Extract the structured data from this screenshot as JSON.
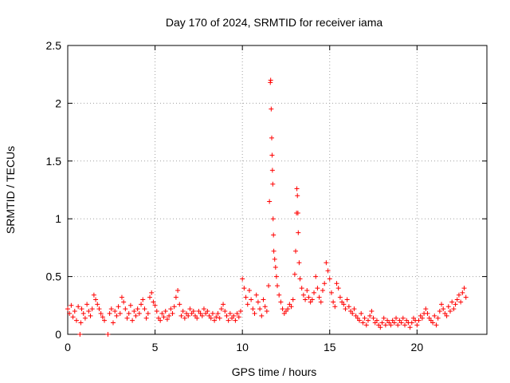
{
  "chart_data": {
    "type": "scatter",
    "title": "Day 170 of 2024, SRMTID for receiver iama",
    "xlabel": "GPS time / hours",
    "ylabel": "SRMTID / TECUs",
    "xlim": [
      0,
      24
    ],
    "ylim": [
      0,
      2.5
    ],
    "grid": true,
    "marker": "+",
    "marker_color": "#ff0000",
    "xticks": [
      0,
      5,
      10,
      15,
      20
    ],
    "xtick_labels": [
      "0",
      "5",
      "10",
      "15",
      "20"
    ],
    "yticks": [
      0,
      0.5,
      1,
      1.5,
      2,
      2.5
    ],
    "ytick_labels": [
      "0",
      "0.5",
      "1",
      "1.5",
      "2",
      "2.5"
    ],
    "series": [
      {
        "name": "SRMTID",
        "points": [
          [
            0.0,
            0.22
          ],
          [
            0.1,
            0.18
          ],
          [
            0.2,
            0.25
          ],
          [
            0.3,
            0.15
          ],
          [
            0.4,
            0.2
          ],
          [
            0.5,
            0.12
          ],
          [
            0.6,
            0.24
          ],
          [
            0.7,
            0.0
          ],
          [
            0.75,
            0.1
          ],
          [
            0.8,
            0.22
          ],
          [
            0.9,
            0.18
          ],
          [
            1.0,
            0.14
          ],
          [
            1.1,
            0.26
          ],
          [
            1.2,
            0.2
          ],
          [
            1.3,
            0.16
          ],
          [
            1.4,
            0.22
          ],
          [
            1.5,
            0.34
          ],
          [
            1.6,
            0.3
          ],
          [
            1.7,
            0.26
          ],
          [
            1.8,
            0.22
          ],
          [
            1.9,
            0.18
          ],
          [
            2.0,
            0.15
          ],
          [
            2.1,
            0.12
          ],
          [
            2.3,
            0.0
          ],
          [
            2.4,
            0.18
          ],
          [
            2.5,
            0.22
          ],
          [
            2.6,
            0.1
          ],
          [
            2.7,
            0.2
          ],
          [
            2.8,
            0.16
          ],
          [
            2.9,
            0.24
          ],
          [
            3.0,
            0.18
          ],
          [
            3.1,
            0.32
          ],
          [
            3.2,
            0.28
          ],
          [
            3.3,
            0.22
          ],
          [
            3.4,
            0.14
          ],
          [
            3.5,
            0.18
          ],
          [
            3.6,
            0.25
          ],
          [
            3.7,
            0.12
          ],
          [
            3.8,
            0.2
          ],
          [
            3.9,
            0.16
          ],
          [
            4.0,
            0.22
          ],
          [
            4.1,
            0.18
          ],
          [
            4.2,
            0.26
          ],
          [
            4.3,
            0.3
          ],
          [
            4.4,
            0.22
          ],
          [
            4.5,
            0.14
          ],
          [
            4.6,
            0.18
          ],
          [
            4.7,
            0.32
          ],
          [
            4.8,
            0.36
          ],
          [
            4.9,
            0.28
          ],
          [
            5.0,
            0.25
          ],
          [
            5.1,
            0.2
          ],
          [
            5.2,
            0.14
          ],
          [
            5.3,
            0.12
          ],
          [
            5.4,
            0.18
          ],
          [
            5.5,
            0.15
          ],
          [
            5.6,
            0.2
          ],
          [
            5.7,
            0.13
          ],
          [
            5.8,
            0.16
          ],
          [
            5.9,
            0.22
          ],
          [
            6.0,
            0.18
          ],
          [
            6.1,
            0.24
          ],
          [
            6.2,
            0.32
          ],
          [
            6.3,
            0.38
          ],
          [
            6.4,
            0.26
          ],
          [
            6.5,
            0.16
          ],
          [
            6.6,
            0.2
          ],
          [
            6.7,
            0.14
          ],
          [
            6.8,
            0.18
          ],
          [
            6.9,
            0.16
          ],
          [
            7.0,
            0.22
          ],
          [
            7.1,
            0.18
          ],
          [
            7.2,
            0.2
          ],
          [
            7.3,
            0.16
          ],
          [
            7.4,
            0.14
          ],
          [
            7.5,
            0.2
          ],
          [
            7.6,
            0.18
          ],
          [
            7.7,
            0.16
          ],
          [
            7.8,
            0.22
          ],
          [
            7.9,
            0.18
          ],
          [
            8.0,
            0.2
          ],
          [
            8.1,
            0.16
          ],
          [
            8.2,
            0.14
          ],
          [
            8.3,
            0.18
          ],
          [
            8.4,
            0.12
          ],
          [
            8.5,
            0.15
          ],
          [
            8.6,
            0.18
          ],
          [
            8.7,
            0.14
          ],
          [
            8.8,
            0.22
          ],
          [
            8.9,
            0.26
          ],
          [
            9.0,
            0.2
          ],
          [
            9.1,
            0.16
          ],
          [
            9.2,
            0.12
          ],
          [
            9.3,
            0.18
          ],
          [
            9.4,
            0.14
          ],
          [
            9.5,
            0.16
          ],
          [
            9.6,
            0.12
          ],
          [
            9.7,
            0.18
          ],
          [
            9.8,
            0.15
          ],
          [
            9.9,
            0.2
          ],
          [
            10.0,
            0.48
          ],
          [
            10.1,
            0.4
          ],
          [
            10.2,
            0.32
          ],
          [
            10.3,
            0.26
          ],
          [
            10.4,
            0.38
          ],
          [
            10.5,
            0.3
          ],
          [
            10.6,
            0.22
          ],
          [
            10.7,
            0.18
          ],
          [
            10.8,
            0.34
          ],
          [
            10.9,
            0.28
          ],
          [
            11.0,
            0.22
          ],
          [
            11.1,
            0.16
          ],
          [
            11.2,
            0.3
          ],
          [
            11.3,
            0.24
          ],
          [
            11.4,
            0.2
          ],
          [
            11.5,
            0.42
          ],
          [
            11.55,
            1.15
          ],
          [
            11.6,
            2.18
          ],
          [
            11.62,
            2.2
          ],
          [
            11.65,
            1.95
          ],
          [
            11.68,
            1.7
          ],
          [
            11.7,
            1.55
          ],
          [
            11.72,
            1.42
          ],
          [
            11.74,
            1.3
          ],
          [
            11.76,
            1.0
          ],
          [
            11.78,
            0.86
          ],
          [
            11.8,
            0.72
          ],
          [
            11.85,
            0.65
          ],
          [
            11.9,
            0.58
          ],
          [
            11.95,
            0.5
          ],
          [
            12.0,
            0.42
          ],
          [
            12.1,
            0.34
          ],
          [
            12.2,
            0.28
          ],
          [
            12.3,
            0.22
          ],
          [
            12.4,
            0.18
          ],
          [
            12.5,
            0.2
          ],
          [
            12.6,
            0.22
          ],
          [
            12.7,
            0.26
          ],
          [
            12.8,
            0.24
          ],
          [
            12.9,
            0.3
          ],
          [
            13.0,
            0.52
          ],
          [
            13.05,
            0.72
          ],
          [
            13.1,
            1.05
          ],
          [
            13.12,
            1.26
          ],
          [
            13.15,
            1.2
          ],
          [
            13.18,
            1.05
          ],
          [
            13.2,
            0.88
          ],
          [
            13.25,
            0.62
          ],
          [
            13.3,
            0.48
          ],
          [
            13.4,
            0.4
          ],
          [
            13.5,
            0.34
          ],
          [
            13.6,
            0.3
          ],
          [
            13.7,
            0.38
          ],
          [
            13.8,
            0.32
          ],
          [
            13.9,
            0.28
          ],
          [
            14.0,
            0.3
          ],
          [
            14.1,
            0.36
          ],
          [
            14.2,
            0.5
          ],
          [
            14.3,
            0.4
          ],
          [
            14.4,
            0.32
          ],
          [
            14.5,
            0.28
          ],
          [
            14.6,
            0.38
          ],
          [
            14.7,
            0.44
          ],
          [
            14.8,
            0.62
          ],
          [
            14.9,
            0.55
          ],
          [
            15.0,
            0.48
          ],
          [
            15.1,
            0.36
          ],
          [
            15.2,
            0.28
          ],
          [
            15.3,
            0.24
          ],
          [
            15.4,
            0.44
          ],
          [
            15.5,
            0.4
          ],
          [
            15.6,
            0.32
          ],
          [
            15.7,
            0.28
          ],
          [
            15.8,
            0.26
          ],
          [
            15.9,
            0.22
          ],
          [
            16.0,
            0.3
          ],
          [
            16.1,
            0.24
          ],
          [
            16.2,
            0.2
          ],
          [
            16.3,
            0.18
          ],
          [
            16.4,
            0.22
          ],
          [
            16.5,
            0.16
          ],
          [
            16.6,
            0.14
          ],
          [
            16.7,
            0.12
          ],
          [
            16.8,
            0.18
          ],
          [
            16.9,
            0.1
          ],
          [
            17.0,
            0.14
          ],
          [
            17.1,
            0.08
          ],
          [
            17.2,
            0.12
          ],
          [
            17.3,
            0.16
          ],
          [
            17.4,
            0.2
          ],
          [
            17.5,
            0.14
          ],
          [
            17.6,
            0.1
          ],
          [
            17.7,
            0.12
          ],
          [
            17.8,
            0.08
          ],
          [
            17.9,
            0.06
          ],
          [
            18.0,
            0.1
          ],
          [
            18.1,
            0.14
          ],
          [
            18.2,
            0.08
          ],
          [
            18.3,
            0.12
          ],
          [
            18.4,
            0.1
          ],
          [
            18.5,
            0.08
          ],
          [
            18.6,
            0.12
          ],
          [
            18.7,
            0.1
          ],
          [
            18.8,
            0.14
          ],
          [
            18.9,
            0.08
          ],
          [
            19.0,
            0.12
          ],
          [
            19.1,
            0.1
          ],
          [
            19.2,
            0.14
          ],
          [
            19.3,
            0.08
          ],
          [
            19.4,
            0.12
          ],
          [
            19.5,
            0.1
          ],
          [
            19.6,
            0.06
          ],
          [
            19.7,
            0.1
          ],
          [
            19.8,
            0.14
          ],
          [
            19.9,
            0.12
          ],
          [
            20.0,
            0.08
          ],
          [
            20.1,
            0.12
          ],
          [
            20.2,
            0.16
          ],
          [
            20.3,
            0.14
          ],
          [
            20.4,
            0.18
          ],
          [
            20.5,
            0.22
          ],
          [
            20.6,
            0.18
          ],
          [
            20.7,
            0.14
          ],
          [
            20.8,
            0.12
          ],
          [
            20.9,
            0.1
          ],
          [
            21.0,
            0.16
          ],
          [
            21.1,
            0.08
          ],
          [
            21.2,
            0.14
          ],
          [
            21.3,
            0.2
          ],
          [
            21.4,
            0.26
          ],
          [
            21.5,
            0.22
          ],
          [
            21.6,
            0.18
          ],
          [
            21.7,
            0.16
          ],
          [
            21.8,
            0.24
          ],
          [
            21.9,
            0.2
          ],
          [
            22.0,
            0.28
          ],
          [
            22.1,
            0.22
          ],
          [
            22.2,
            0.26
          ],
          [
            22.3,
            0.3
          ],
          [
            22.4,
            0.34
          ],
          [
            22.5,
            0.28
          ],
          [
            22.6,
            0.36
          ],
          [
            22.7,
            0.4
          ],
          [
            22.8,
            0.32
          ]
        ]
      }
    ]
  }
}
